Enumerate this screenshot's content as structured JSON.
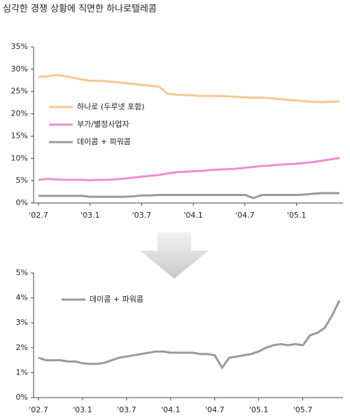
{
  "chart_data": [
    {
      "type": "line",
      "title": "심각한 경쟁 상황에 직면한 하나로텔레콤",
      "categories": [
        "'02.7",
        null,
        null,
        null,
        null,
        null,
        "'03.1",
        null,
        null,
        null,
        null,
        null,
        "'03.7",
        null,
        null,
        null,
        null,
        null,
        "'04.1",
        null,
        null,
        null,
        null,
        null,
        "'04.7",
        null,
        null,
        null,
        null,
        null,
        "'05.1",
        null,
        null,
        null,
        null,
        null
      ],
      "series": [
        {
          "name": "하나로 (두루넷 포함)",
          "color": "#f5c98e",
          "values": [
            28.3,
            28.4,
            28.7,
            28.5,
            28.1,
            27.7,
            27.4,
            27.4,
            27.3,
            27.1,
            26.9,
            26.7,
            26.5,
            26.3,
            26.1,
            24.5,
            24.3,
            24.2,
            24.1,
            24.0,
            24.0,
            24.0,
            23.9,
            23.8,
            23.7,
            23.6,
            23.6,
            23.5,
            23.3,
            23.1,
            23.0,
            22.8,
            22.7,
            22.6,
            22.7,
            22.8
          ]
        },
        {
          "name": "부가/별정사업자",
          "color": "#f08cd0",
          "values": [
            5.2,
            5.4,
            5.3,
            5.2,
            5.2,
            5.2,
            5.1,
            5.2,
            5.2,
            5.3,
            5.5,
            5.7,
            5.9,
            6.1,
            6.3,
            6.6,
            6.9,
            7.0,
            7.1,
            7.2,
            7.4,
            7.5,
            7.6,
            7.7,
            7.9,
            8.1,
            8.3,
            8.4,
            8.6,
            8.7,
            8.8,
            9.0,
            9.2,
            9.5,
            9.8,
            10.1
          ]
        },
        {
          "name": "데이콤 + 파워콤",
          "color": "#999999",
          "values": [
            1.6,
            1.6,
            1.6,
            1.6,
            1.6,
            1.6,
            1.4,
            1.4,
            1.4,
            1.4,
            1.4,
            1.5,
            1.7,
            1.7,
            1.8,
            1.8,
            1.8,
            1.8,
            1.8,
            1.8,
            1.8,
            1.8,
            1.8,
            1.8,
            1.8,
            1.1,
            1.8,
            1.8,
            1.8,
            1.8,
            1.8,
            1.9,
            2.1,
            2.2,
            2.2,
            2.2
          ]
        }
      ],
      "ylim": [
        0,
        35
      ],
      "yticks": [
        {
          "value": 0,
          "label": "0%"
        },
        {
          "value": 5,
          "label": "5%"
        },
        {
          "value": 10,
          "label": "10%"
        },
        {
          "value": 15,
          "label": "15%"
        },
        {
          "value": 20,
          "label": "20%"
        },
        {
          "value": 25,
          "label": "25%"
        },
        {
          "value": 30,
          "label": "30%"
        },
        {
          "value": 35,
          "label": "35%"
        }
      ],
      "legend": "center-left",
      "grid": false
    },
    {
      "type": "line",
      "categories": [
        "'02.7",
        null,
        null,
        null,
        null,
        null,
        "'03.1",
        null,
        null,
        null,
        null,
        null,
        "'03.7",
        null,
        null,
        null,
        null,
        null,
        "'04.1",
        null,
        null,
        null,
        null,
        null,
        "'04.7",
        null,
        null,
        null,
        null,
        null,
        "'05.1",
        null,
        null,
        null,
        null,
        null,
        "'05.7",
        null,
        null,
        null,
        null,
        null
      ],
      "series": [
        {
          "name": "데이콤 + 파워콤",
          "color": "#999999",
          "values": [
            1.6,
            1.5,
            1.5,
            1.5,
            1.45,
            1.45,
            1.38,
            1.35,
            1.35,
            1.4,
            1.5,
            1.6,
            1.65,
            1.7,
            1.75,
            1.8,
            1.85,
            1.85,
            1.8,
            1.8,
            1.8,
            1.8,
            1.75,
            1.75,
            1.7,
            1.2,
            1.6,
            1.65,
            1.7,
            1.75,
            1.85,
            2.0,
            2.1,
            2.15,
            2.1,
            2.15,
            2.1,
            2.5,
            2.6,
            2.8,
            3.3,
            3.9
          ]
        }
      ],
      "ylim": [
        0,
        5
      ],
      "yticks": [
        {
          "value": 0,
          "label": "0%"
        },
        {
          "value": 1,
          "label": "1%"
        },
        {
          "value": 2,
          "label": "2%"
        },
        {
          "value": 3,
          "label": "3%"
        },
        {
          "value": 4,
          "label": "4%"
        },
        {
          "value": 5,
          "label": "5%"
        }
      ],
      "legend": "upper-left",
      "grid": false
    }
  ]
}
